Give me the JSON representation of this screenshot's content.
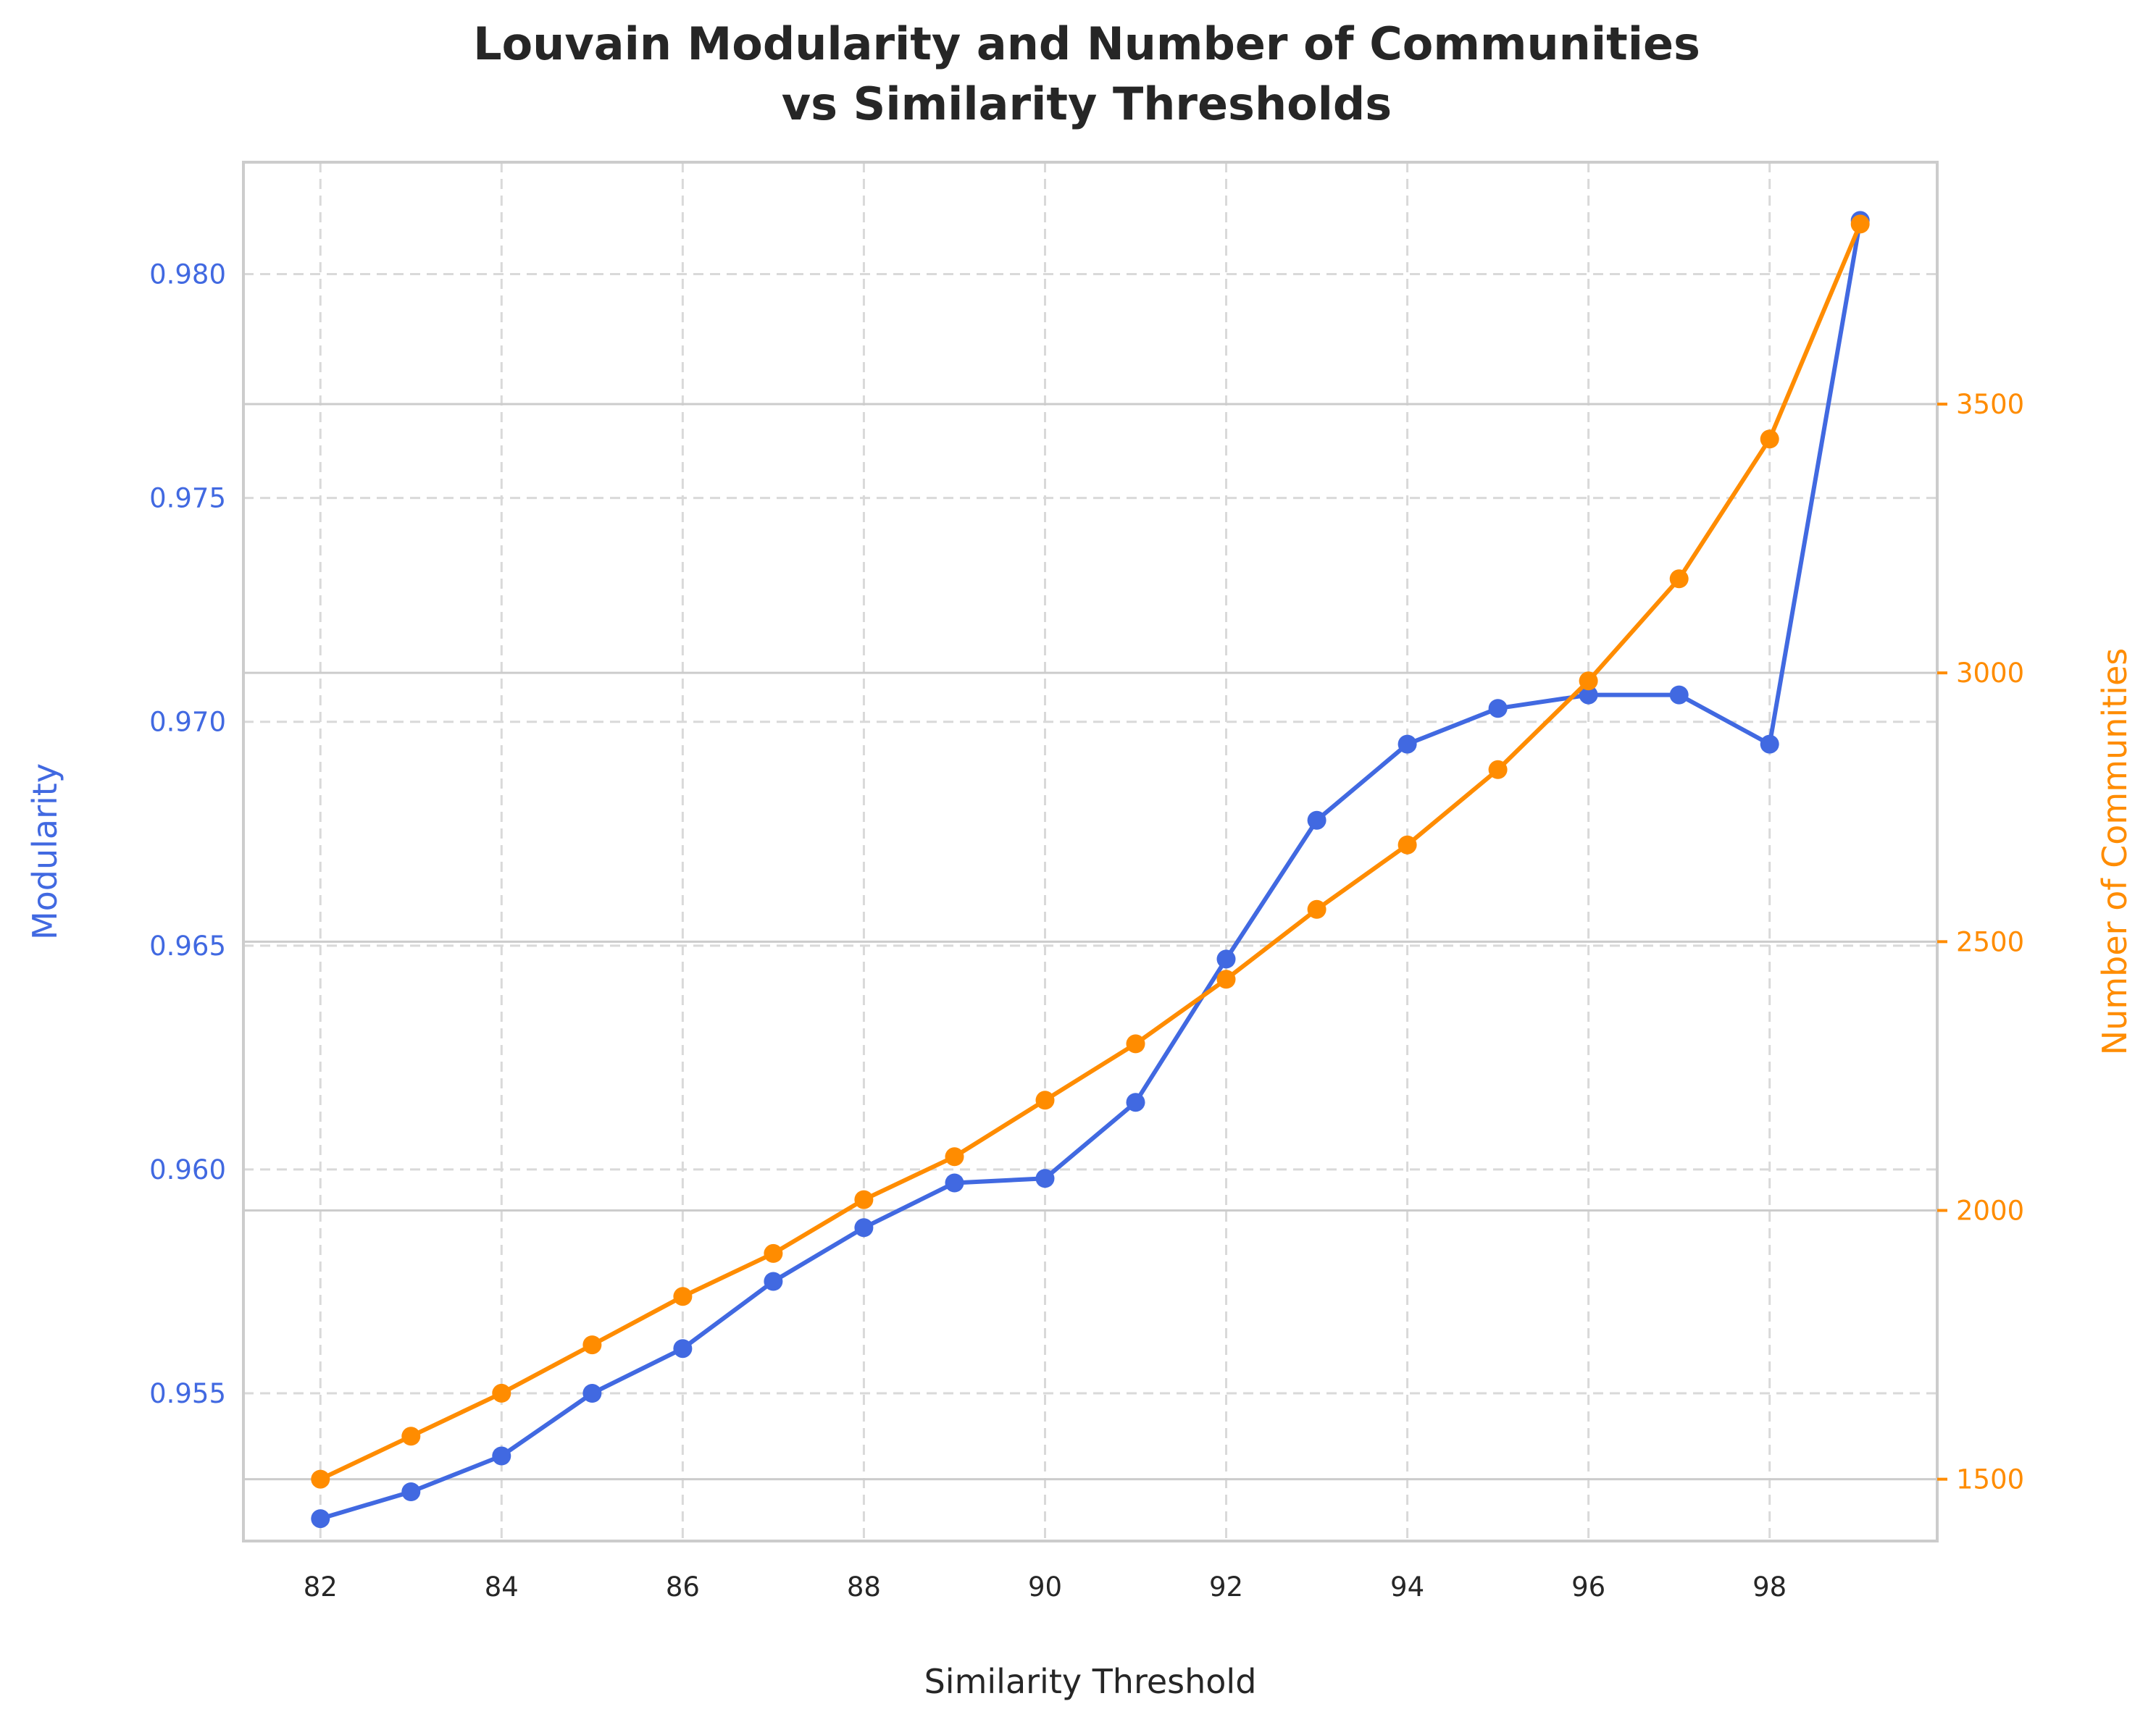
{
  "chart_data": {
    "type": "line",
    "title": [
      "Louvain Modularity and Number of Communities",
      "vs Similarity Thresholds"
    ],
    "xlabel": "Similarity Threshold",
    "ylabel_left": "Modularity",
    "ylabel_right": "Number of Communities",
    "x": [
      82,
      83,
      84,
      85,
      86,
      87,
      88,
      89,
      90,
      91,
      92,
      93,
      94,
      95,
      96,
      97,
      98,
      99
    ],
    "x_ticks": [
      "82",
      "84",
      "86",
      "88",
      "90",
      "92",
      "94",
      "96",
      "98"
    ],
    "left_ticks": [
      "0.955",
      "0.960",
      "0.965",
      "0.970",
      "0.975",
      "0.980"
    ],
    "right_ticks": [
      "1500",
      "2000",
      "2500",
      "3000",
      "3500"
    ],
    "xlim": [
      81.15,
      99.85
    ],
    "ylim_left": [
      0.9517,
      0.9825
    ],
    "ylim_right": [
      1385,
      3950
    ],
    "grid": true,
    "series": [
      {
        "axis": "left",
        "color": "#4169e1",
        "values": [
          0.9522,
          0.9528,
          0.9536,
          0.955,
          0.956,
          0.9575,
          0.9587,
          0.9597,
          0.9598,
          0.9615,
          0.9647,
          0.9678,
          0.9695,
          0.9703,
          0.9706,
          0.9706,
          0.9695,
          0.9812
        ]
      },
      {
        "axis": "right",
        "color": "#ff8c00",
        "values": [
          1500,
          1580,
          1660,
          1750,
          1840,
          1920,
          2020,
          2100,
          2205,
          2310,
          2430,
          2560,
          2680,
          2820,
          2985,
          3175,
          3435,
          3835
        ]
      }
    ],
    "colors": {
      "left_axis": "#4169e1",
      "right_axis": "#ff8c00",
      "text": "#262626",
      "frame": "#cccccc",
      "grid": "#d9d9d9"
    }
  }
}
